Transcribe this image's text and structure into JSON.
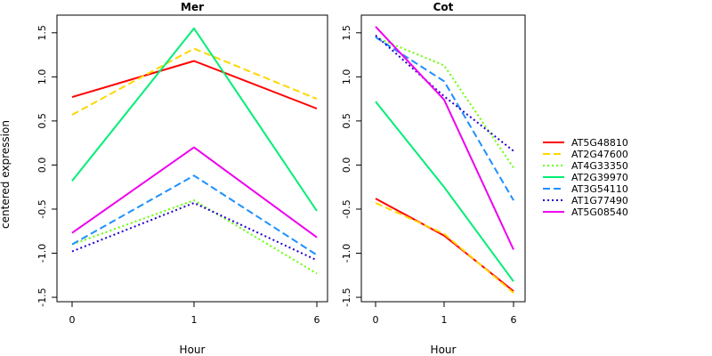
{
  "chart_data": {
    "type": "line",
    "ylabel": "centered expression",
    "legend": {
      "placement": "right",
      "entries": [
        "AT5G48810",
        "AT2G47600",
        "AT4G33350",
        "AT2G39970",
        "AT3G54110",
        "AT1G77490",
        "AT5G08540"
      ]
    },
    "styles": [
      {
        "color": "#ff0000",
        "dash": "solid"
      },
      {
        "color": "#ffd700",
        "dash": "dashed"
      },
      {
        "color": "#66ff00",
        "dash": "dotted"
      },
      {
        "color": "#00ee76",
        "dash": "solid"
      },
      {
        "color": "#1e90ff",
        "dash": "dashed"
      },
      {
        "color": "#2200cc",
        "dash": "dotted"
      },
      {
        "color": "#ee00ee",
        "dash": "solid"
      }
    ],
    "panels": [
      {
        "title": "Mer",
        "xlabel": "Hour",
        "x": [
          "0",
          "1",
          "6"
        ],
        "ylim": [
          -1.55,
          1.7
        ],
        "yticks": [
          "-1.5",
          "-1.0",
          "-0.5",
          "0.0",
          "0.5",
          "1.0",
          "1.5"
        ],
        "series": [
          {
            "name": "AT5G48810",
            "values": [
              0.77,
              1.18,
              0.64
            ]
          },
          {
            "name": "AT2G47600",
            "values": [
              0.57,
              1.32,
              0.75
            ]
          },
          {
            "name": "AT4G33350",
            "values": [
              -0.9,
              -0.4,
              -1.23
            ]
          },
          {
            "name": "AT2G39970",
            "values": [
              -0.18,
              1.55,
              -0.52
            ]
          },
          {
            "name": "AT3G54110",
            "values": [
              -0.9,
              -0.12,
              -1.02
            ]
          },
          {
            "name": "AT1G77490",
            "values": [
              -0.98,
              -0.43,
              -1.08
            ]
          },
          {
            "name": "AT5G08540",
            "values": [
              -0.77,
              0.2,
              -0.82
            ]
          }
        ]
      },
      {
        "title": "Cot",
        "xlabel": "Hour",
        "x": [
          "0",
          "1",
          "6"
        ],
        "ylim": [
          -1.55,
          1.7
        ],
        "yticks": [
          "-1.5",
          "-1.0",
          "-0.5",
          "0.0",
          "0.5",
          "1.0",
          "1.5"
        ],
        "series": [
          {
            "name": "AT5G48810",
            "values": [
              -0.38,
              -0.8,
              -1.43
            ]
          },
          {
            "name": "AT2G47600",
            "values": [
              -0.43,
              -0.78,
              -1.45
            ]
          },
          {
            "name": "AT4G33350",
            "values": [
              1.45,
              1.13,
              -0.03
            ]
          },
          {
            "name": "AT2G39970",
            "values": [
              0.72,
              -0.25,
              -1.32
            ]
          },
          {
            "name": "AT3G54110",
            "values": [
              1.45,
              0.95,
              -0.4
            ]
          },
          {
            "name": "AT1G77490",
            "values": [
              1.47,
              0.78,
              0.16
            ]
          },
          {
            "name": "AT5G08540",
            "values": [
              1.57,
              0.74,
              -0.96
            ]
          }
        ]
      }
    ]
  }
}
